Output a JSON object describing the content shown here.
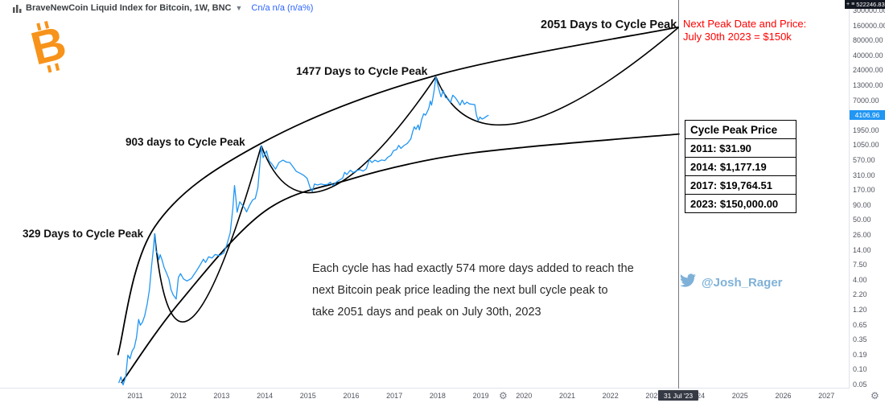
{
  "header": {
    "symbol_title": "BraveNewCoin Liquid Index for Bitcoin, 1W, BNC",
    "quote": "Cn/a n/a (n/a%)"
  },
  "logo": {
    "symbol": "₿",
    "letter": "B",
    "color": "#f7931a"
  },
  "annotations": {
    "peak_labels": [
      "329 Days to Cycle Peak",
      "903 days to Cycle Peak",
      "1477 Days to Cycle Peak",
      "2051 Days to Cycle Peak"
    ],
    "next_peak_line1": "Next Peak Date and Price:",
    "next_peak_line2": "July 30th 2023 = $150k",
    "paragraph": [
      "Each cycle has had exactly 574 more days added to reach the",
      "next Bitcoin peak price leading the next bull cycle peak to",
      "take 2051 days and peak on July 30th, 2023"
    ],
    "twitter_handle": "@Josh_Rager"
  },
  "peak_price_box": {
    "title": "Cycle Peak Price",
    "rows": [
      "2011: $31.90",
      "2014: $1,177.19",
      "2017: $19,764.51",
      "2023: $150,000.00"
    ]
  },
  "price_axis": {
    "crosshair_price": "522246.83",
    "current_price": "4106.96",
    "ticks": [
      "300000.00",
      "160000.00",
      "80000.00",
      "40000.00",
      "24000.00",
      "13000.00",
      "7000.00",
      null,
      "1950.00",
      "1050.00",
      "570.00",
      "310.00",
      "170.00",
      "90.00",
      "50.00",
      "26.00",
      "14.00",
      "7.50",
      "4.00",
      "2.20",
      "1.20",
      "0.65",
      "0.35",
      "0.19",
      "0.10",
      "0.05"
    ]
  },
  "time_axis": {
    "years": [
      "2011",
      "2012",
      "2013",
      "2014",
      "2015",
      "2016",
      "2017",
      "2018",
      "2019",
      "2020",
      "2021",
      "2022",
      "2023",
      "2024",
      "2025",
      "2026",
      "2027"
    ],
    "crosshair_date": "31 Jul '23"
  },
  "colors": {
    "price_line_blue": "#2196f3",
    "trend_black": "#000000",
    "alert_red": "#ff0000",
    "btc_orange": "#f7931a",
    "twitter_blue": "#7fb1d8",
    "crosshair_gray": "#73797f"
  },
  "chart_data": {
    "type": "line",
    "title": "BraveNewCoin Liquid Index for Bitcoin, weekly, log scale",
    "x_range": [
      2010.5,
      2027.8
    ],
    "y_log_range": [
      0.05,
      522246.83
    ],
    "legend_position": "none",
    "grid": false,
    "crosshair": {
      "year": 2023.58,
      "date": "31 Jul '23",
      "price": 522246.83
    },
    "cycle_peaks": [
      {
        "year": 2011.45,
        "price": 31.9,
        "days_to_peak": 329,
        "label": "329 Days to Cycle Peak"
      },
      {
        "year": 2013.92,
        "price": 1177.19,
        "days_to_peak": 903,
        "label": "903 days to Cycle Peak"
      },
      {
        "year": 2017.96,
        "price": 19764.51,
        "days_to_peak": 1477,
        "label": "1477 Days to Cycle Peak"
      },
      {
        "year": 2023.58,
        "price": 150000.0,
        "days_to_peak": 2051,
        "label": "2051 Days to Cycle Peak",
        "projected": true
      }
    ],
    "upper_curve": [
      [
        2010.6,
        0.22
      ],
      [
        2011.45,
        42
      ],
      [
        2013.92,
        1300
      ],
      [
        2017.96,
        21000
      ],
      [
        2023.58,
        152000
      ]
    ],
    "lower_curve": [
      [
        2010.68,
        0.07
      ],
      [
        2012.0,
        1.8
      ],
      [
        2014.0,
        80
      ],
      [
        2016.0,
        300
      ],
      [
        2018.0,
        700
      ],
      [
        2020.0,
        1100
      ],
      [
        2023.6,
        1900
      ]
    ],
    "cycle_arcs": [
      {
        "from": [
          2011.45,
          31.9
        ],
        "low": [
          2012.3,
          1.0
        ],
        "to": [
          2013.92,
          1177.19
        ]
      },
      {
        "from": [
          2013.92,
          1177.19
        ],
        "low": [
          2015.45,
          200
        ],
        "to": [
          2017.96,
          19764.51
        ]
      },
      {
        "from": [
          2017.96,
          19764.51
        ],
        "low": [
          2019.9,
          3000
        ],
        "to": [
          2023.58,
          150000
        ]
      }
    ],
    "series": [
      {
        "name": "BTC price",
        "points": [
          [
            2010.62,
            0.07
          ],
          [
            2010.67,
            0.09
          ],
          [
            2010.72,
            0.065
          ],
          [
            2010.78,
            0.09
          ],
          [
            2010.83,
            0.22
          ],
          [
            2010.88,
            0.19
          ],
          [
            2010.93,
            0.26
          ],
          [
            2010.98,
            0.3
          ],
          [
            2011.03,
            0.45
          ],
          [
            2011.08,
            0.95
          ],
          [
            2011.12,
            0.75
          ],
          [
            2011.17,
            0.85
          ],
          [
            2011.22,
            1.1
          ],
          [
            2011.28,
            1.8
          ],
          [
            2011.33,
            3.2
          ],
          [
            2011.38,
            8.5
          ],
          [
            2011.42,
            17
          ],
          [
            2011.45,
            31.9
          ],
          [
            2011.48,
            16
          ],
          [
            2011.52,
            14
          ],
          [
            2011.55,
            11
          ],
          [
            2011.58,
            13.5
          ],
          [
            2011.62,
            11
          ],
          [
            2011.67,
            8
          ],
          [
            2011.72,
            6.5
          ],
          [
            2011.78,
            5
          ],
          [
            2011.83,
            3.2
          ],
          [
            2011.88,
            2.6
          ],
          [
            2011.95,
            2.2
          ],
          [
            2012.0,
            5.3
          ],
          [
            2012.05,
            6.2
          ],
          [
            2012.12,
            5
          ],
          [
            2012.2,
            4.6
          ],
          [
            2012.3,
            5.1
          ],
          [
            2012.4,
            6.6
          ],
          [
            2012.5,
            8.8
          ],
          [
            2012.58,
            11.2
          ],
          [
            2012.63,
            9.8
          ],
          [
            2012.7,
            12.4
          ],
          [
            2012.78,
            11.8
          ],
          [
            2012.85,
            13.6
          ],
          [
            2012.95,
            13
          ],
          [
            2013.05,
            14.5
          ],
          [
            2013.12,
            20
          ],
          [
            2013.2,
            33
          ],
          [
            2013.26,
            90
          ],
          [
            2013.3,
            230
          ],
          [
            2013.33,
            140
          ],
          [
            2013.36,
            77
          ],
          [
            2013.42,
            118
          ],
          [
            2013.48,
            103
          ],
          [
            2013.53,
            92
          ],
          [
            2013.58,
            78
          ],
          [
            2013.65,
            103
          ],
          [
            2013.72,
            128
          ],
          [
            2013.78,
            135
          ],
          [
            2013.84,
            210
          ],
          [
            2013.88,
            480
          ],
          [
            2013.92,
            1177.19
          ],
          [
            2013.96,
            720
          ],
          [
            2014.0,
            820
          ],
          [
            2014.04,
            950
          ],
          [
            2014.1,
            630
          ],
          [
            2014.16,
            560
          ],
          [
            2014.25,
            450
          ],
          [
            2014.33,
            590
          ],
          [
            2014.42,
            650
          ],
          [
            2014.5,
            600
          ],
          [
            2014.58,
            590
          ],
          [
            2014.65,
            500
          ],
          [
            2014.73,
            410
          ],
          [
            2014.82,
            380
          ],
          [
            2014.9,
            350
          ],
          [
            2014.98,
            310
          ],
          [
            2015.05,
            210
          ],
          [
            2015.1,
            180
          ],
          [
            2015.15,
            245
          ],
          [
            2015.22,
            235
          ],
          [
            2015.3,
            245
          ],
          [
            2015.38,
            236
          ],
          [
            2015.45,
            240
          ],
          [
            2015.52,
            263
          ],
          [
            2015.58,
            230
          ],
          [
            2015.65,
            262
          ],
          [
            2015.72,
            285
          ],
          [
            2015.8,
            310
          ],
          [
            2015.85,
            395
          ],
          [
            2015.9,
            360
          ],
          [
            2015.98,
            430
          ],
          [
            2016.05,
            390
          ],
          [
            2016.12,
            420
          ],
          [
            2016.2,
            440
          ],
          [
            2016.28,
            416
          ],
          [
            2016.35,
            455
          ],
          [
            2016.42,
            660
          ],
          [
            2016.48,
            590
          ],
          [
            2016.55,
            650
          ],
          [
            2016.62,
            610
          ],
          [
            2016.7,
            655
          ],
          [
            2016.78,
            640
          ],
          [
            2016.85,
            735
          ],
          [
            2016.92,
            790
          ],
          [
            2016.98,
            960
          ],
          [
            2017.05,
            1000
          ],
          [
            2017.1,
            1190
          ],
          [
            2017.15,
            1050
          ],
          [
            2017.22,
            1180
          ],
          [
            2017.3,
            1290
          ],
          [
            2017.38,
            1550
          ],
          [
            2017.42,
            2050
          ],
          [
            2017.46,
            2550
          ],
          [
            2017.5,
            2300
          ],
          [
            2017.55,
            2750
          ],
          [
            2017.58,
            2250
          ],
          [
            2017.63,
            3400
          ],
          [
            2017.68,
            4350
          ],
          [
            2017.72,
            4100
          ],
          [
            2017.77,
            4850
          ],
          [
            2017.8,
            5600
          ],
          [
            2017.83,
            7300
          ],
          [
            2017.86,
            6200
          ],
          [
            2017.89,
            8200
          ],
          [
            2017.92,
            11300
          ],
          [
            2017.96,
            19764.51
          ],
          [
            2018.0,
            14500
          ],
          [
            2018.04,
            11200
          ],
          [
            2018.08,
            8700
          ],
          [
            2018.13,
            11400
          ],
          [
            2018.18,
            8500
          ],
          [
            2018.24,
            8100
          ],
          [
            2018.3,
            6900
          ],
          [
            2018.35,
            9300
          ],
          [
            2018.4,
            8600
          ],
          [
            2018.46,
            7400
          ],
          [
            2018.52,
            6200
          ],
          [
            2018.57,
            7600
          ],
          [
            2018.62,
            6400
          ],
          [
            2018.68,
            7000
          ],
          [
            2018.74,
            6500
          ],
          [
            2018.8,
            6400
          ],
          [
            2018.86,
            6350
          ],
          [
            2018.9,
            4100
          ],
          [
            2018.94,
            3300
          ],
          [
            2018.98,
            3800
          ],
          [
            2019.03,
            3500
          ],
          [
            2019.08,
            3650
          ],
          [
            2019.13,
            3900
          ],
          [
            2019.18,
            4106.96
          ]
        ]
      }
    ]
  }
}
